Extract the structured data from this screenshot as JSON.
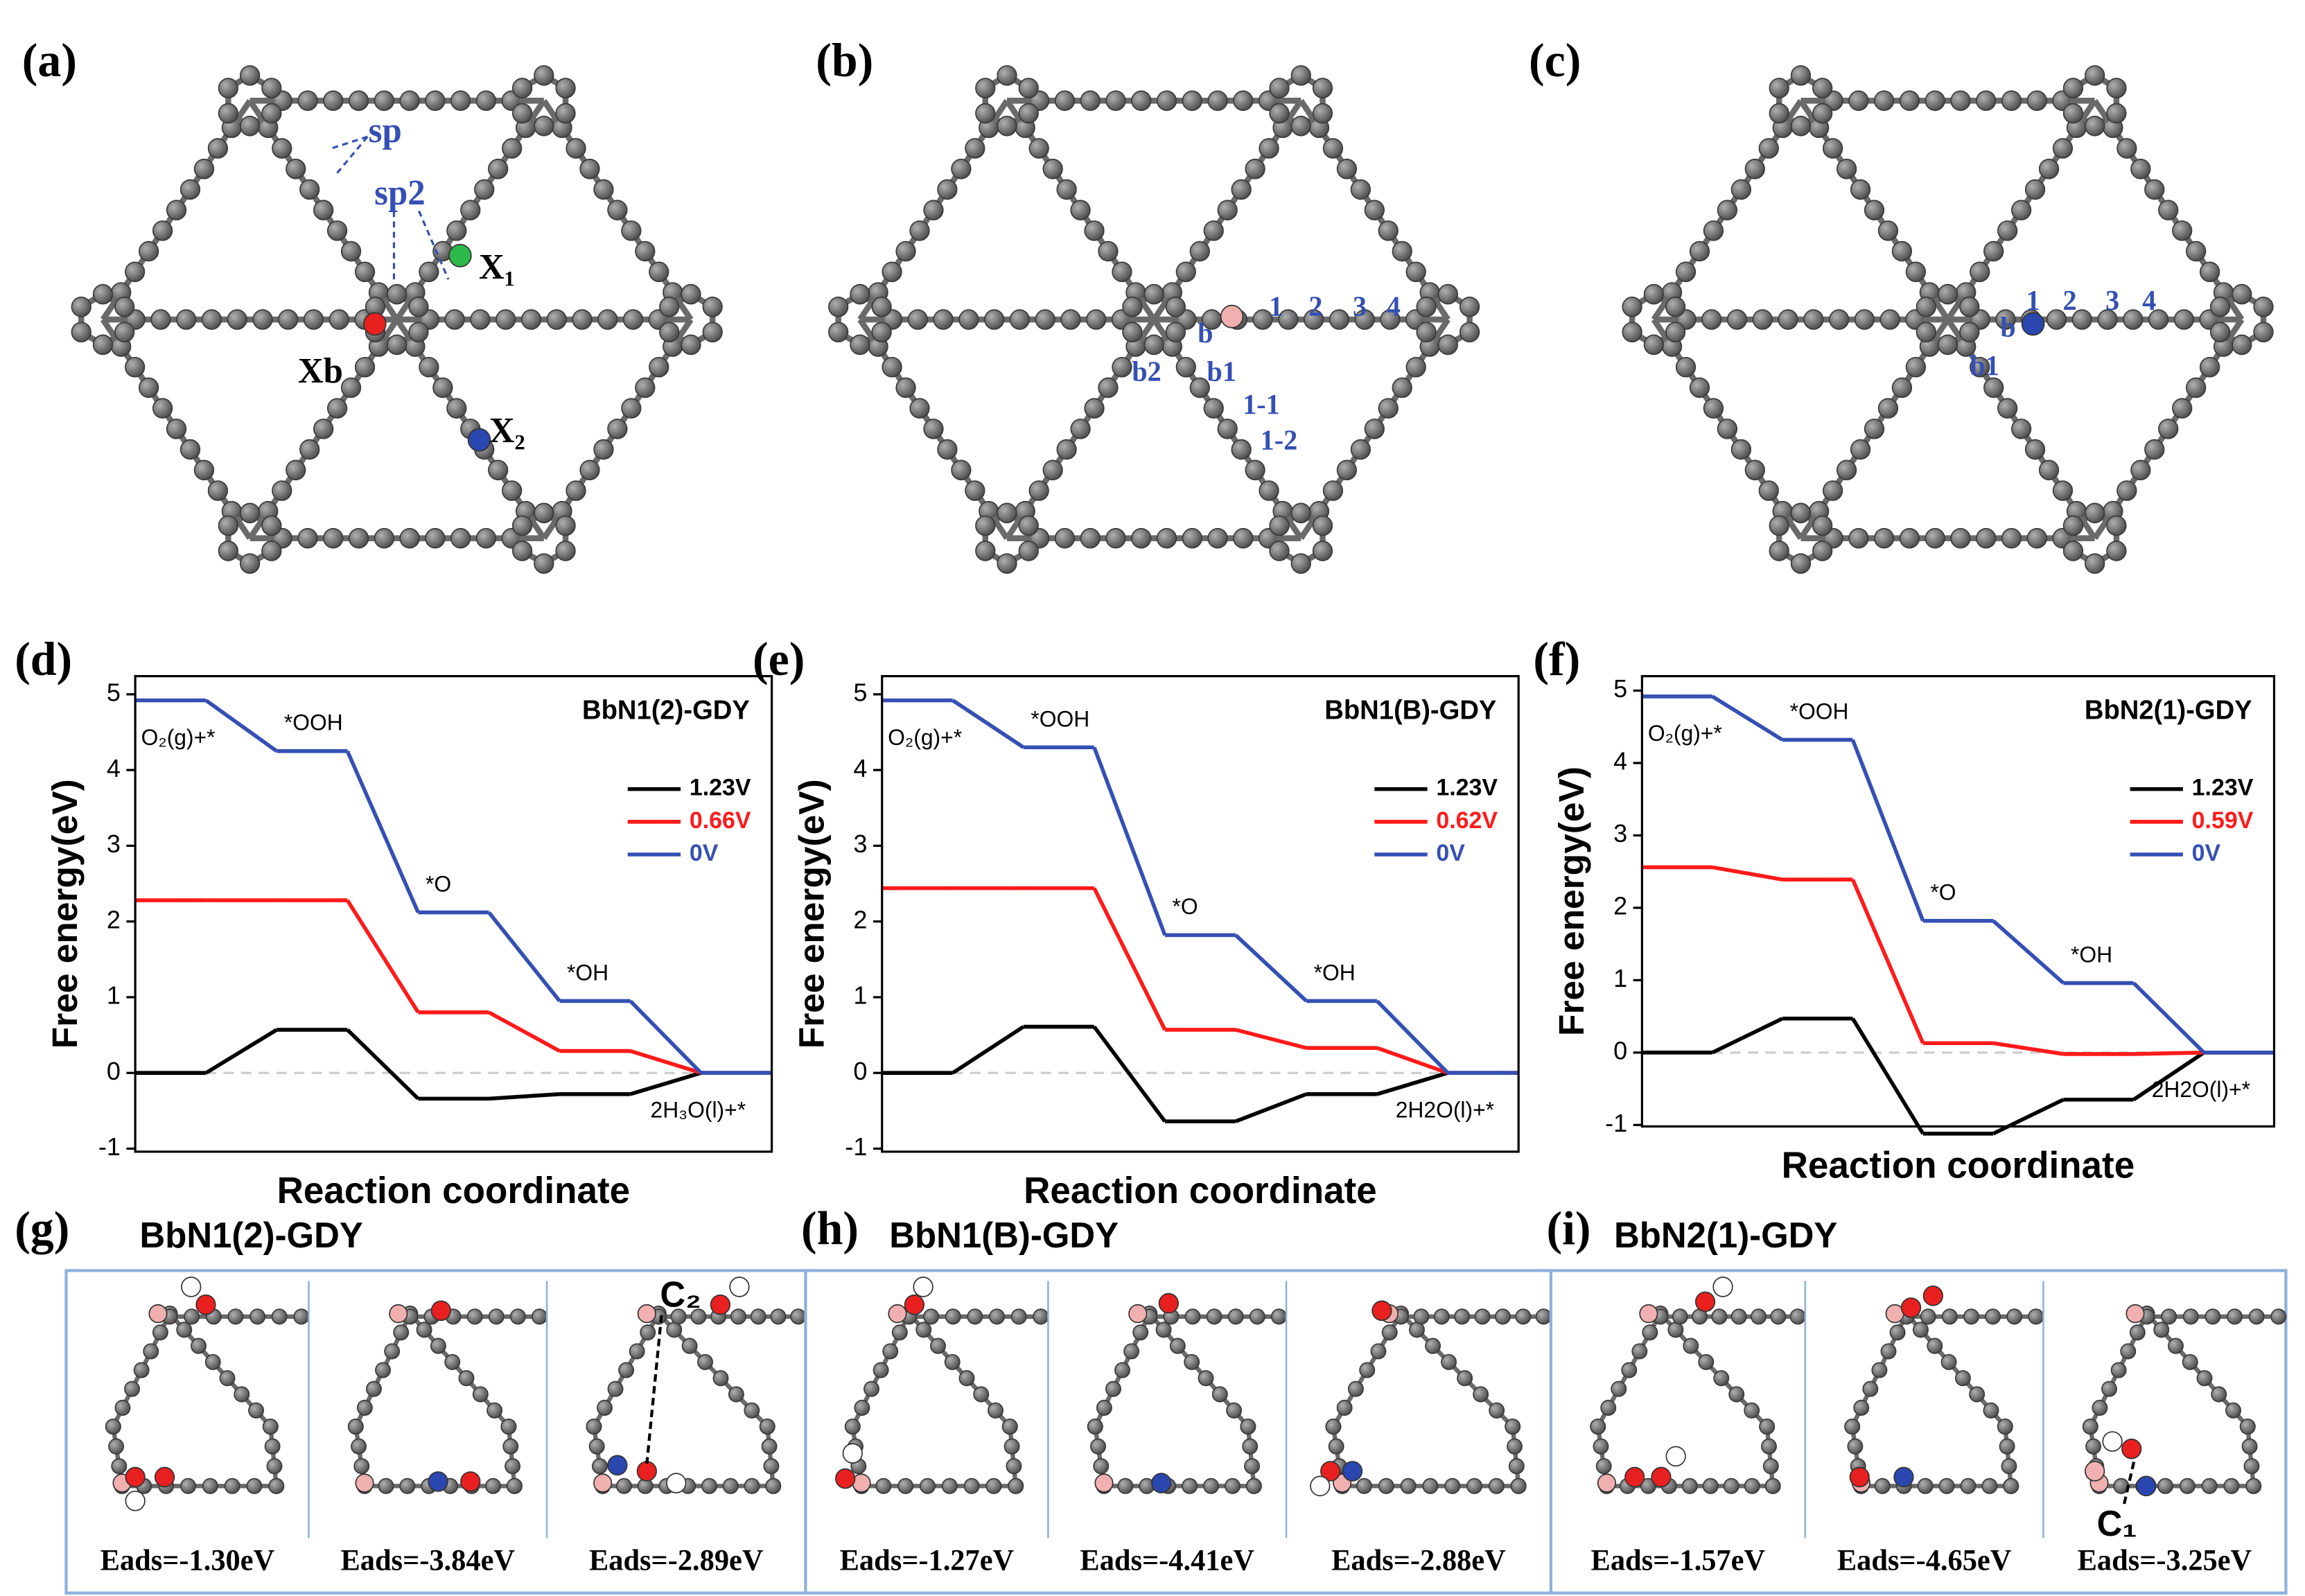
{
  "lattice_panels": [
    {
      "label": "(a)",
      "annotations": [
        "sp",
        "sp2",
        "X₁",
        "Xb",
        "X₂"
      ]
    },
    {
      "label": "(b)",
      "annotations": [
        "b",
        "1",
        "2",
        "3",
        "4",
        "b2",
        "b1",
        "1-1",
        "1-2"
      ]
    },
    {
      "label": "(c)",
      "annotations": [
        "b",
        "1",
        "2",
        "3",
        "4",
        "b1"
      ]
    }
  ],
  "chart_data": [
    {
      "type": "step",
      "panel_label": "(d)",
      "title": "BbN1(2)-GDY",
      "x_label": "Reaction coordinate",
      "y_label": "Free energy(eV)",
      "categories": [
        "O₂(g)+*",
        "*OOH",
        "*O",
        "*OH",
        "2H₃O(l)+*"
      ],
      "series": [
        {
          "name": "1.23V",
          "color": "#000000",
          "values": [
            0,
            0.57,
            -0.34,
            -0.28,
            0
          ]
        },
        {
          "name": "0.66V",
          "color": "#ff1a1a",
          "values": [
            2.28,
            2.28,
            0.8,
            0.29,
            0
          ]
        },
        {
          "name": "0V",
          "color": "#3550b4",
          "values": [
            4.92,
            4.25,
            2.12,
            0.95,
            0
          ]
        }
      ],
      "ylim": [
        -1.04,
        5.24
      ],
      "yticks": [
        -1,
        0,
        1,
        2,
        3,
        4,
        5
      ],
      "legend": "upper right"
    },
    {
      "type": "step",
      "panel_label": "(e)",
      "title": "BbN1(B)-GDY",
      "x_label": "Reaction coordinate",
      "y_label": "Free energy(eV)",
      "categories": [
        "O₂(g)+*",
        "*OOH",
        "*O",
        "*OH",
        "2H2O(l)+*"
      ],
      "series": [
        {
          "name": "1.23V",
          "color": "#000000",
          "values": [
            0,
            0.61,
            -0.64,
            -0.28,
            0
          ]
        },
        {
          "name": "0.62V",
          "color": "#ff1a1a",
          "values": [
            2.44,
            2.44,
            0.57,
            0.33,
            0
          ]
        },
        {
          "name": "0V",
          "color": "#3550b4",
          "values": [
            4.92,
            4.3,
            1.82,
            0.95,
            0
          ]
        }
      ],
      "ylim": [
        -1.04,
        5.24
      ],
      "yticks": [
        -1,
        0,
        1,
        2,
        3,
        4,
        5
      ],
      "legend": "upper right"
    },
    {
      "type": "step",
      "panel_label": "(f)",
      "title": "BbN2(1)-GDY",
      "x_label": "Reaction coordinate",
      "y_label": "Free energy(eV)",
      "categories": [
        "O₂(g)+*",
        "*OOH",
        "*O",
        "*OH",
        "2H2O(l)+*"
      ],
      "series": [
        {
          "name": "1.23V",
          "color": "#000000",
          "values": [
            0,
            0.47,
            -1.12,
            -0.65,
            0
          ]
        },
        {
          "name": "0.59V",
          "color": "#ff1a1a",
          "values": [
            2.56,
            2.39,
            0.13,
            -0.02,
            0
          ]
        },
        {
          "name": "0V",
          "color": "#3550b4",
          "values": [
            4.92,
            4.32,
            1.82,
            0.96,
            0
          ]
        }
      ],
      "ylim": [
        -1.02,
        5.2
      ],
      "yticks": [
        -1,
        0,
        1,
        2,
        3,
        4,
        5
      ],
      "legend": "upper right"
    }
  ],
  "structure_panels": [
    {
      "label": "(g)",
      "title": "BbN1(2)-GDY",
      "eads": [
        "Eads=-1.30eV",
        "Eads=-3.84eV",
        "Eads=-2.89eV"
      ],
      "annotation": "C₂"
    },
    {
      "label": "(h)",
      "title": "BbN1(B)-GDY",
      "eads": [
        "Eads=-1.27eV",
        "Eads=-4.41eV",
        "Eads=-2.88eV"
      ]
    },
    {
      "label": "(i)",
      "title": "BbN2(1)-GDY",
      "eads": [
        "Eads=-1.57eV",
        "Eads=-4.65eV",
        "Eads=-3.25eV"
      ],
      "annotation": "C₁"
    }
  ]
}
